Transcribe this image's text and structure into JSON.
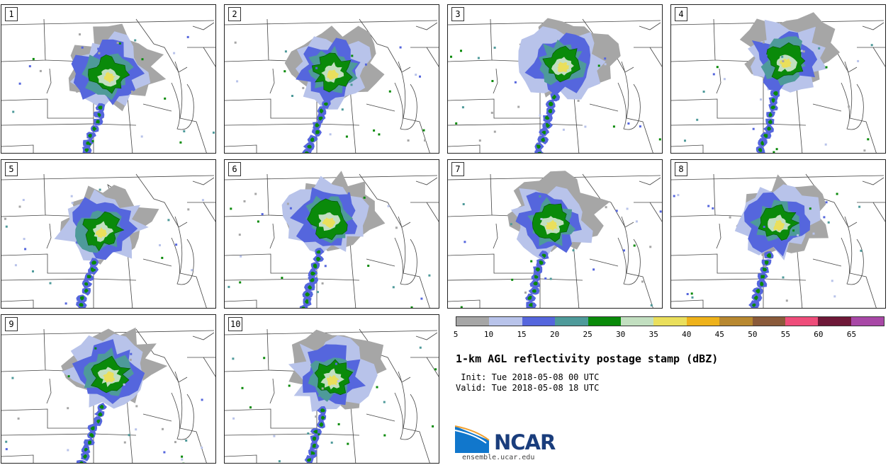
{
  "title": "1-km AGL reflectivity postage stamp (dBZ)",
  "init": " Init: Tue 2018-05-08 00 UTC",
  "valid": "Valid: Tue 2018-05-08 18 UTC",
  "logo": {
    "name": "NCAR",
    "url": "ensemble.ucar.edu"
  },
  "panels": [
    {
      "label": "1",
      "cx": 150,
      "cy": 115
    },
    {
      "label": "2",
      "cx": 150,
      "cy": 110
    },
    {
      "label": "3",
      "cx": 160,
      "cy": 100
    },
    {
      "label": "4",
      "cx": 160,
      "cy": 95
    },
    {
      "label": "5",
      "cx": 140,
      "cy": 115
    },
    {
      "label": "6",
      "cx": 145,
      "cy": 100
    },
    {
      "label": "7",
      "cx": 145,
      "cy": 105
    },
    {
      "label": "8",
      "cx": 150,
      "cy": 105
    },
    {
      "label": "9",
      "cx": 150,
      "cy": 100
    },
    {
      "label": "10",
      "cx": 150,
      "cy": 105
    }
  ],
  "colorbar": {
    "ticks": [
      "5",
      "10",
      "15",
      "20",
      "25",
      "30",
      "35",
      "40",
      "45",
      "50",
      "55",
      "60",
      "65"
    ],
    "colors": [
      "#a6a6a6",
      "#b8c3ea",
      "#5566dd",
      "#4e9a9a",
      "#0a8a0a",
      "#c2dfc0",
      "#eadf5c",
      "#eeb21b",
      "#b88830",
      "#8a5a3a",
      "#ee4d7a",
      "#6e1838",
      "#a848a6"
    ]
  }
}
